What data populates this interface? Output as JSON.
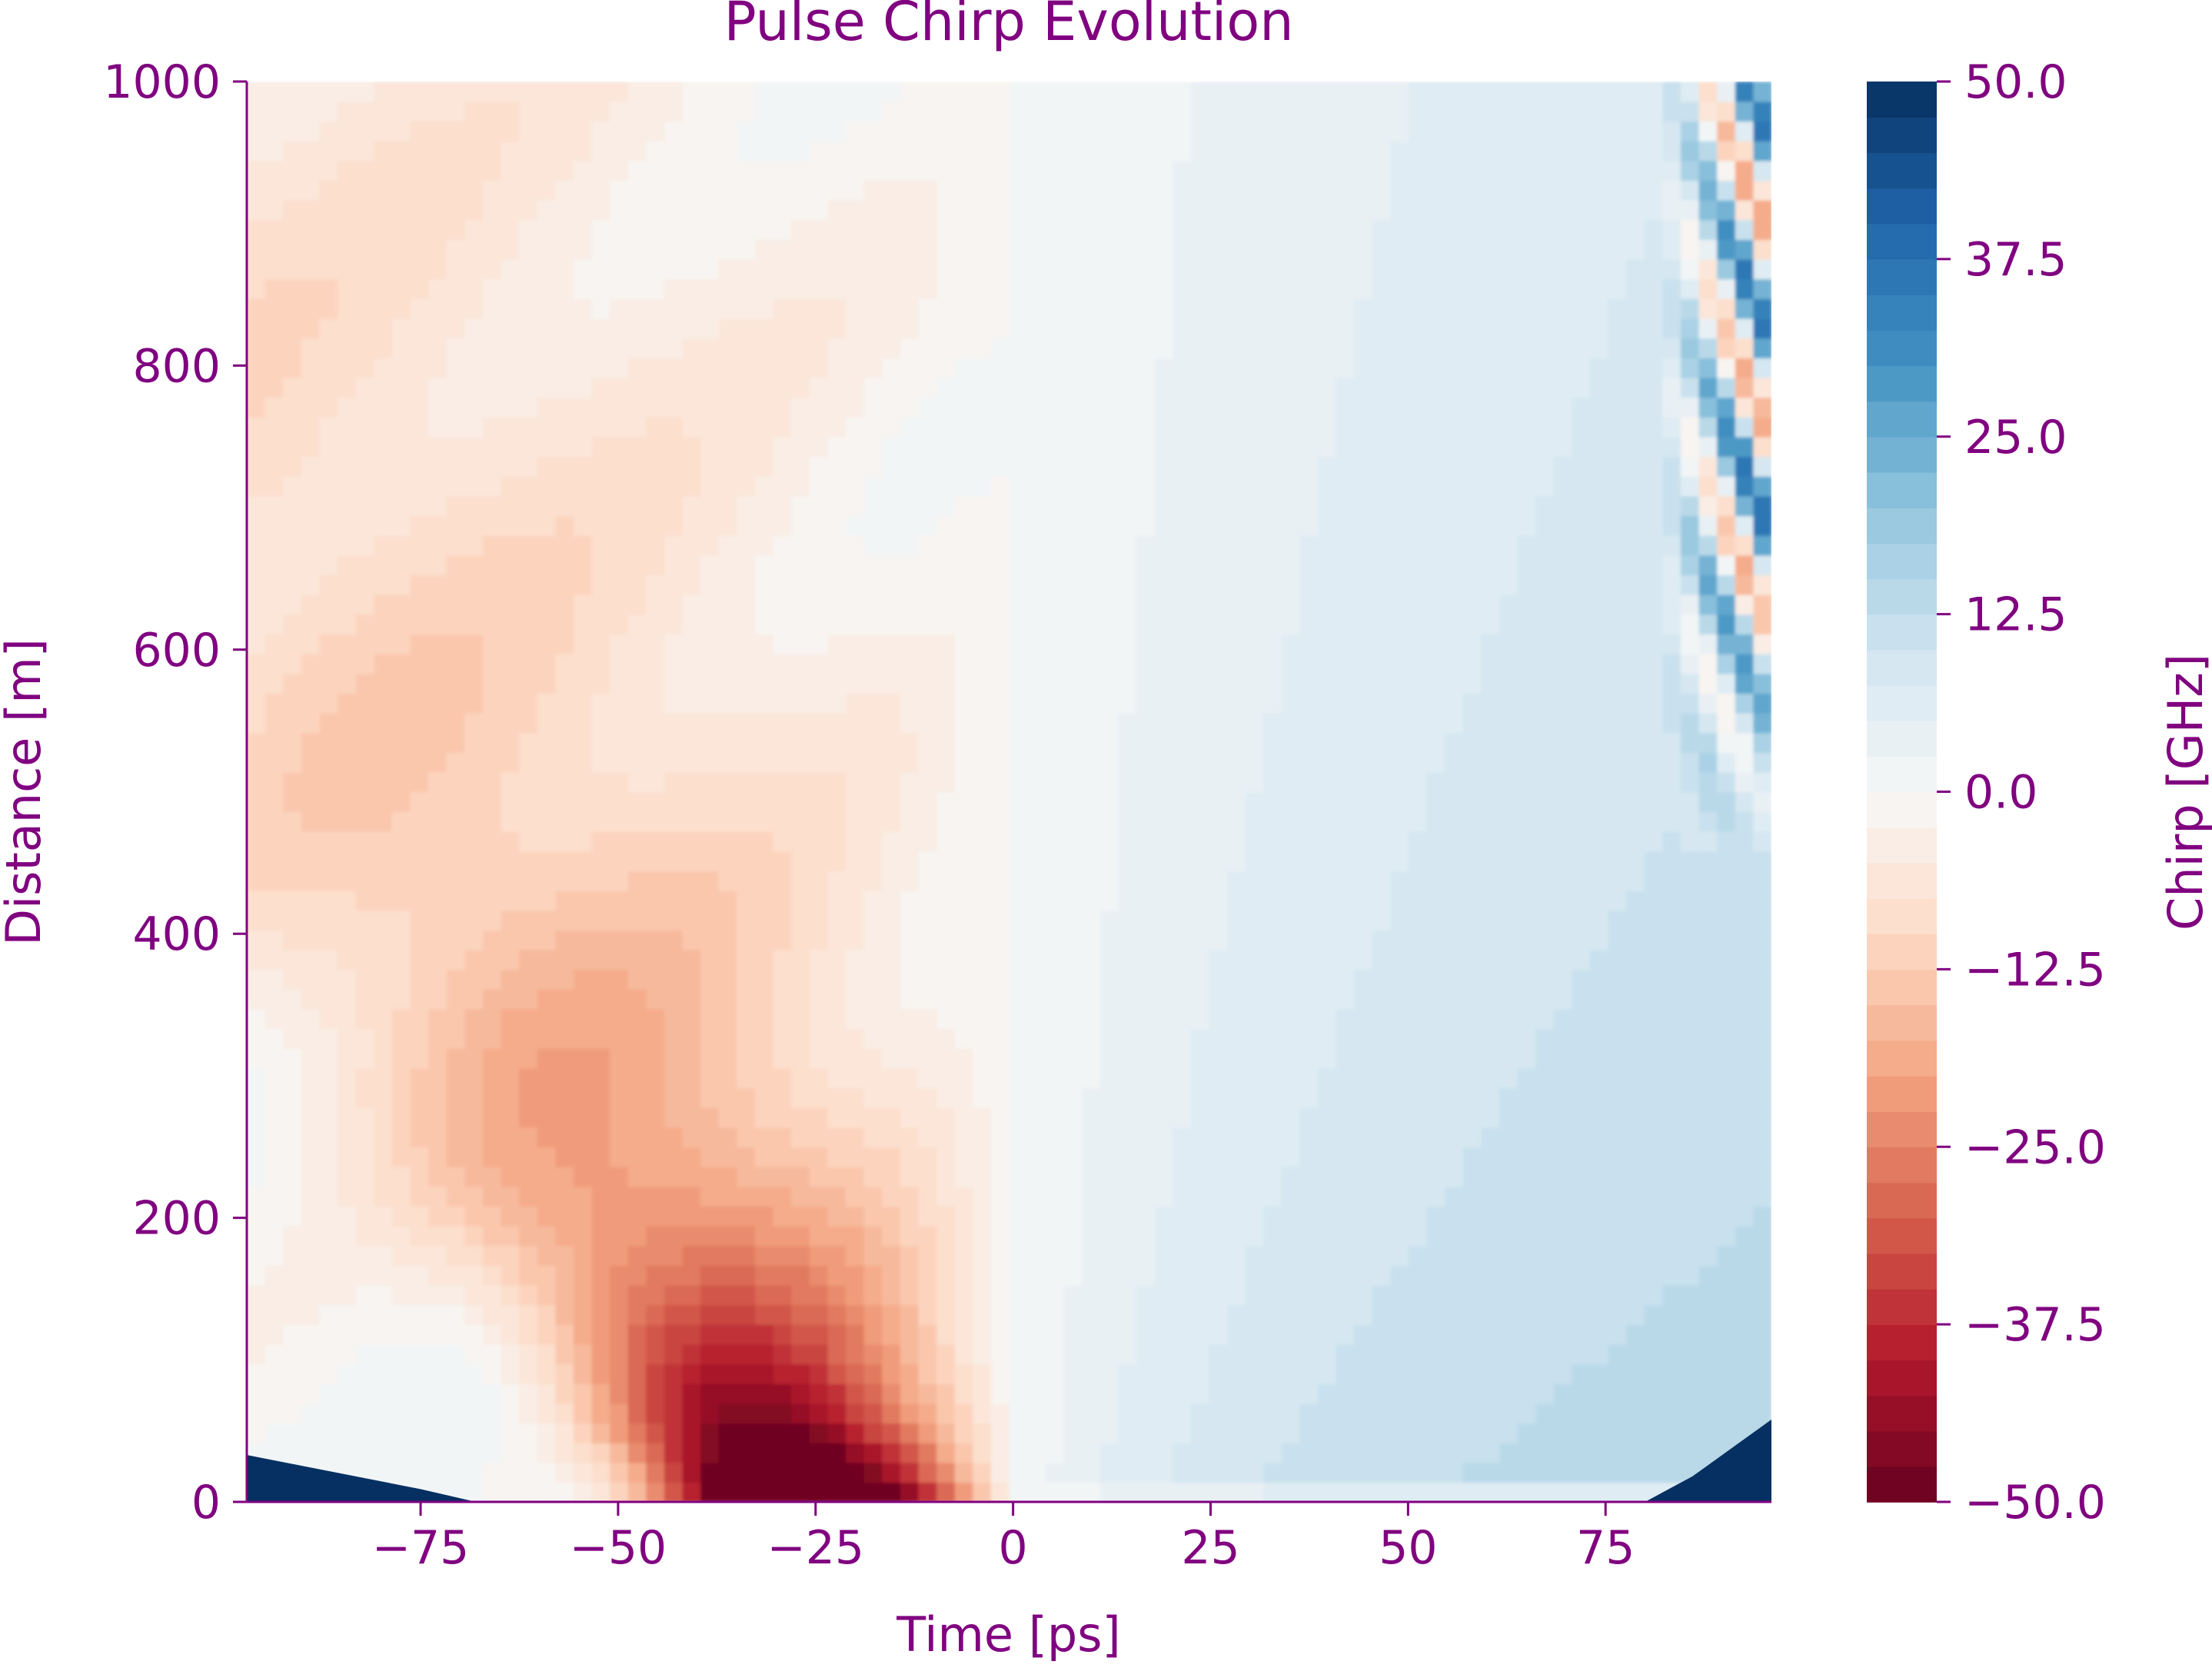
{
  "chart_data": {
    "type": "heatmap",
    "subtype": "filled-contour",
    "title": "Pulse Chirp Evolution",
    "xlabel": "Time [ps]",
    "ylabel": "Distance [m]",
    "colorbar_label": "Chirp [GHz]",
    "xlim": [
      -97,
      96
    ],
    "ylim": [
      0,
      1000
    ],
    "clim": [
      -50,
      50
    ],
    "x_ticks": [
      -75,
      -50,
      -25,
      0,
      25,
      50,
      75
    ],
    "x_tick_labels": [
      "−75",
      "−50",
      "−25",
      "0",
      "25",
      "50",
      "75"
    ],
    "y_ticks": [
      0,
      200,
      400,
      600,
      800,
      1000
    ],
    "y_tick_labels": [
      "0",
      "200",
      "400",
      "600",
      "800",
      "1000"
    ],
    "colorbar_ticks": [
      -50,
      -37.5,
      -25,
      -12.5,
      0,
      12.5,
      25,
      37.5,
      50
    ],
    "colorbar_tick_labels": [
      "−50.0",
      "−37.5",
      "−25.0",
      "−12.5",
      "0.0",
      "12.5",
      "25.0",
      "37.5",
      "50.0"
    ],
    "colormap": "RdBu",
    "contour_levels": 40,
    "colorbar_colors": [
      "#67001f",
      "#b2182b",
      "#d6604d",
      "#f4a582",
      "#fddbc7",
      "#f7f7f7",
      "#d1e5f0",
      "#92c5de",
      "#4393c3",
      "#2166ac",
      "#053061"
    ],
    "text_color": "#800080",
    "grid": false
  }
}
